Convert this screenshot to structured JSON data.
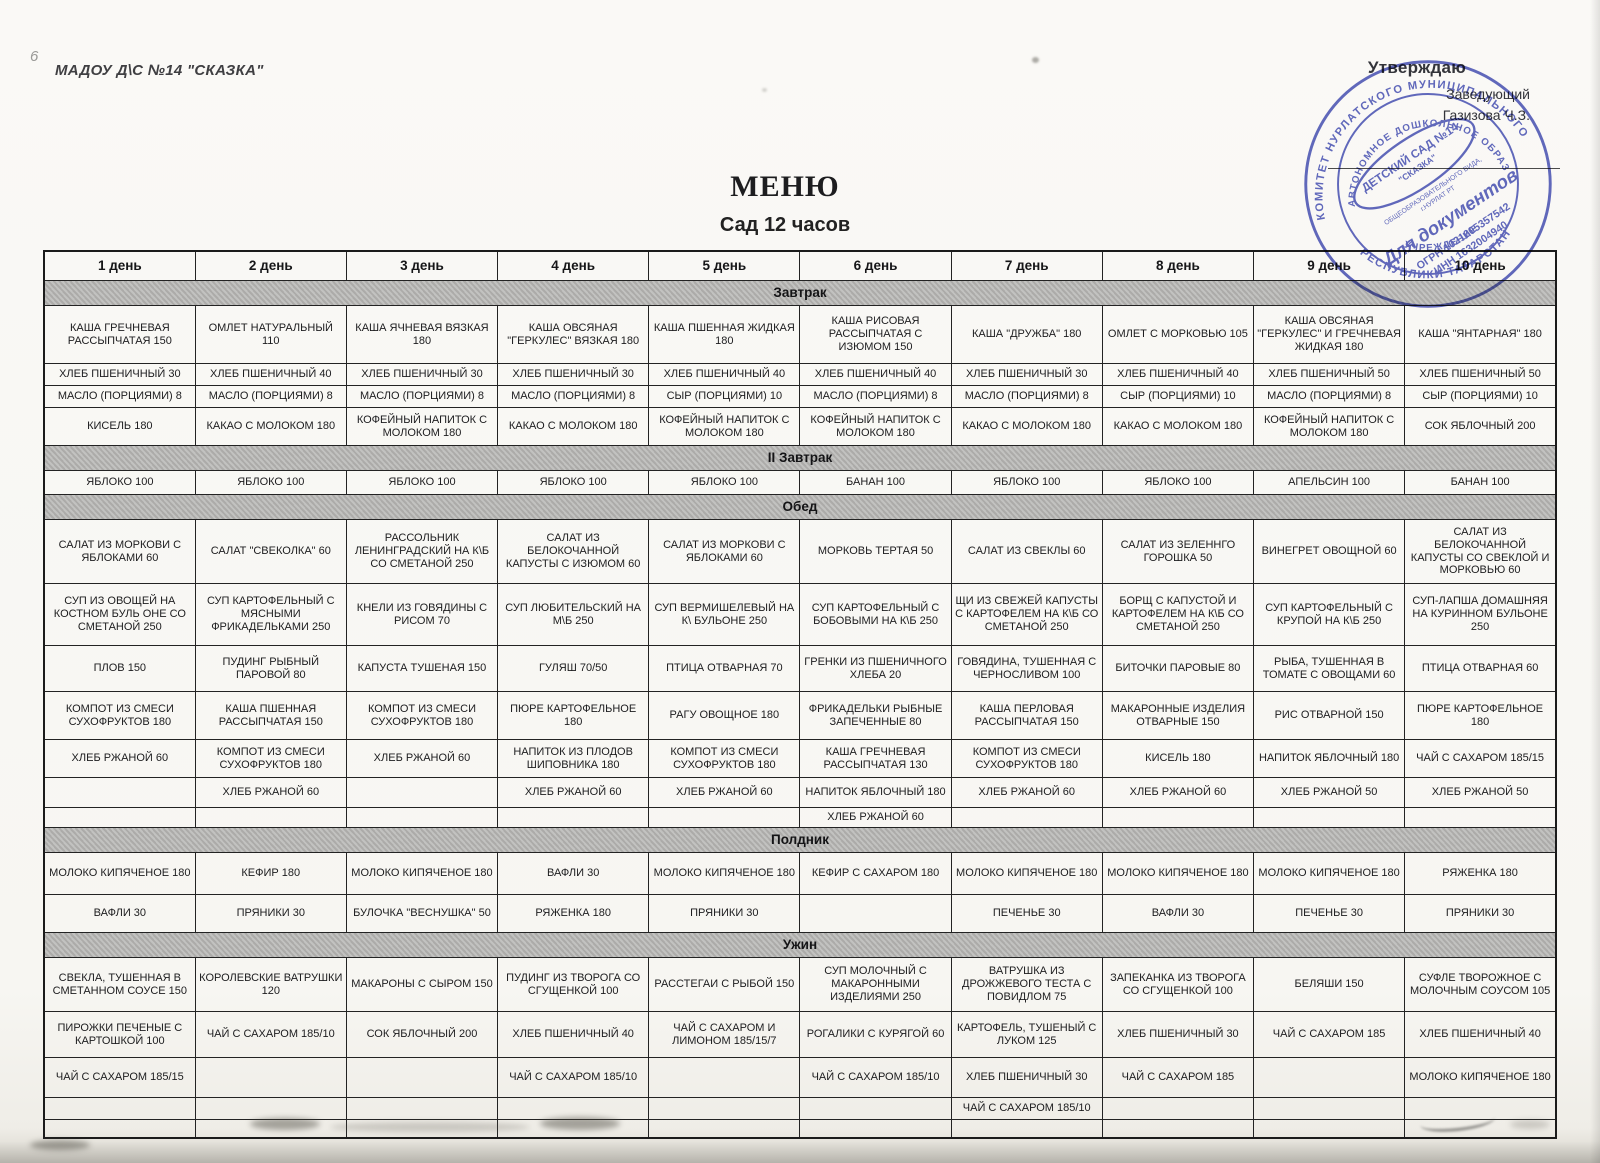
{
  "header": {
    "org_name": "МАДОУ Д\\С №14 \"СКАЗКА\"",
    "approve_title": "Утверждаю",
    "approve_role": "Заведующий",
    "approve_name": "Газизова Ч.З.",
    "title": "МЕНЮ",
    "subtitle": "Сад 12 часов"
  },
  "stamp": {
    "color": "#3f49b5",
    "ring_outer_top": "КОМИТЕТ НУРЛАТСКОГО МУНИЦИПАЛЬНОГО",
    "ring_outer_bottom": "РЕСПУБЛИКИ ТАТАРСТАН",
    "ring_inner_top": "АВТОНОМНОЕ ДОШКОЛЬНОЕ ОБРАЗОВ.",
    "ring_inner_bottom": "УЧРЕЖДЕНИЕ",
    "center_name": "ДЕТСКИЙ САД №14",
    "center_name2": "\"СКАЗКА\"",
    "center_type": "ОБЩЕОБРАЗОВАТЕЛЬНОГО ВИДА,",
    "center_city": "г.НУРЛАТ РТ",
    "purpose": "Для документов",
    "ogrn": "ОГРН 1021605357542",
    "inn": "ИНН 1632004940"
  },
  "table": {
    "day_headers": [
      "1 день",
      "2 день",
      "3 день",
      "4 день",
      "5 день",
      "6 день",
      "7 день",
      "8 день",
      "9 день",
      "10 день"
    ],
    "sections": [
      {
        "name": "Завтрак",
        "rows": [
          [
            "КАША ГРЕЧНЕВАЯ РАССЫПЧАТАЯ 150",
            "ОМЛЕТ НАТУРАЛЬНЫЙ 110",
            "КАША ЯЧНЕВАЯ ВЯЗКАЯ 180",
            "КАША ОВСЯНАЯ \"ГЕРКУЛЕС\" ВЯЗКАЯ 180",
            "КАША ПШЕННАЯ ЖИДКАЯ 180",
            "КАША РИСОВАЯ РАССЫПЧАТАЯ С ИЗЮМОМ 150",
            "КАША \"ДРУЖБА\" 180",
            "ОМЛЕТ С МОРКОВЬЮ 105",
            "КАША ОВСЯНАЯ \"ГЕРКУЛЕС\" И ГРЕЧНЕВАЯ ЖИДКАЯ 180",
            "КАША \"ЯНТАРНАЯ\" 180"
          ],
          [
            "ХЛЕБ ПШЕНИЧНЫЙ 30",
            "ХЛЕБ ПШЕНИЧНЫЙ 40",
            "ХЛЕБ ПШЕНИЧНЫЙ 30",
            "ХЛЕБ ПШЕНИЧНЫЙ 30",
            "ХЛЕБ ПШЕНИЧНЫЙ 40",
            "ХЛЕБ ПШЕНИЧНЫЙ 40",
            "ХЛЕБ ПШЕНИЧНЫЙ 30",
            "ХЛЕБ ПШЕНИЧНЫЙ 40",
            "ХЛЕБ ПШЕНИЧНЫЙ 50",
            "ХЛЕБ ПШЕНИЧНЫЙ 50"
          ],
          [
            "МАСЛО (ПОРЦИЯМИ) 8",
            "МАСЛО (ПОРЦИЯМИ) 8",
            "МАСЛО (ПОРЦИЯМИ) 8",
            "МАСЛО (ПОРЦИЯМИ) 8",
            "СЫР (ПОРЦИЯМИ) 10",
            "МАСЛО (ПОРЦИЯМИ) 8",
            "МАСЛО (ПОРЦИЯМИ) 8",
            "СЫР (ПОРЦИЯМИ) 10",
            "МАСЛО (ПОРЦИЯМИ) 8",
            "СЫР (ПОРЦИЯМИ) 10"
          ],
          [
            "КИСЕЛЬ 180",
            "КАКАО С МОЛОКОМ 180",
            "КОФЕЙНЫЙ НАПИТОК С МОЛОКОМ 180",
            "КАКАО С МОЛОКОМ 180",
            "КОФЕЙНЫЙ НАПИТОК С МОЛОКОМ 180",
            "КОФЕЙНЫЙ НАПИТОК С МОЛОКОМ 180",
            "КАКАО С МОЛОКОМ 180",
            "КАКАО С МОЛОКОМ 180",
            "КОФЕЙНЫЙ НАПИТОК С МОЛОКОМ 180",
            "СОК ЯБЛОЧНЫЙ 200"
          ]
        ]
      },
      {
        "name": "II Завтрак",
        "rows": [
          [
            "ЯБЛОКО 100",
            "ЯБЛОКО 100",
            "ЯБЛОКО 100",
            "ЯБЛОКО 100",
            "ЯБЛОКО 100",
            "БАНАН 100",
            "ЯБЛОКО 100",
            "ЯБЛОКО 100",
            "АПЕЛЬСИН 100",
            "БАНАН 100"
          ]
        ]
      },
      {
        "name": "Обед",
        "rows": [
          [
            "САЛАТ ИЗ МОРКОВИ С ЯБЛОКАМИ 60",
            "САЛАТ \"СВЕКОЛКА\" 60",
            "РАССОЛЬНИК ЛЕНИНГРАДСКИЙ НА К\\Б СО СМЕТАНОЙ 250",
            "САЛАТ ИЗ БЕЛОКОЧАННОЙ КАПУСТЫ С ИЗЮМОМ 60",
            "САЛАТ ИЗ МОРКОВИ С ЯБЛОКАМИ 60",
            "МОРКОВЬ ТЕРТАЯ 50",
            "САЛАТ ИЗ СВЕКЛЫ 60",
            "САЛАТ ИЗ ЗЕЛЕННГО ГОРОШКА 50",
            "ВИНЕГРЕТ ОВОЩНОЙ 60",
            "САЛАТ ИЗ БЕЛОКОЧАННОЙ КАПУСТЫ СО СВЕКЛОЙ И МОРКОВЬЮ 60"
          ],
          [
            "СУП ИЗ ОВОЩЕЙ НА КОСТНОМ БУЛЬ ОНЕ СО СМЕТАНОЙ 250",
            "СУП КАРТОФЕЛЬНЫЙ С МЯСНЫМИ ФРИКАДЕЛЬКАМИ 250",
            "КНЕЛИ ИЗ ГОВЯДИНЫ С РИСОМ 70",
            "СУП ЛЮБИТЕЛЬСКИЙ НА М\\Б 250",
            "СУП ВЕРМИШЕЛЕВЫЙ НА К\\ БУЛЬОНЕ 250",
            "СУП КАРТОФЕЛЬНЫЙ С БОБОВЫМИ НА К\\Б 250",
            "ЩИ ИЗ СВЕЖЕЙ КАПУСТЫ С КАРТОФЕЛЕМ НА К\\Б СО СМЕТАНОЙ 250",
            "БОРЩ С КАПУСТОЙ И КАРТОФЕЛЕМ НА К\\Б СО СМЕТАНОЙ 250",
            "СУП КАРТОФЕЛЬНЫЙ С КРУПОЙ НА К\\Б 250",
            "СУП-ЛАПША ДОМАШНЯЯ НА КУРИННОМ БУЛЬОНЕ 250"
          ],
          [
            "ПЛОВ 150",
            "ПУДИНГ РЫБНЫЙ ПАРОВОЙ 80",
            "КАПУСТА ТУШЕНАЯ 150",
            "ГУЛЯШ 70/50",
            "ПТИЦА ОТВАРНАЯ 70",
            "ГРЕНКИ ИЗ ПШЕНИЧНОГО ХЛЕБА 20",
            "ГОВЯДИНА, ТУШЕННАЯ С ЧЕРНОСЛИВОМ 100",
            "БИТОЧКИ ПАРОВЫЕ 80",
            "РЫБА, ТУШЕННАЯ В ТОМАТЕ С ОВОЩАМИ 60",
            "ПТИЦА ОТВАРНАЯ 60"
          ],
          [
            "КОМПОТ ИЗ СМЕСИ СУХОФРУКТОВ 180",
            "КАША ПШЕННАЯ РАССЫПЧАТАЯ 150",
            "КОМПОТ ИЗ СМЕСИ СУХОФРУКТОВ 180",
            "ПЮРЕ КАРТОФЕЛЬНОЕ 180",
            "РАГУ ОВОЩНОЕ 180",
            "ФРИКАДЕЛЬКИ РЫБНЫЕ ЗАПЕЧЕННЫЕ 80",
            "КАША ПЕРЛОВАЯ РАССЫПЧАТАЯ 150",
            "МАКАРОННЫЕ ИЗДЕЛИЯ ОТВАРНЫЕ 150",
            "РИС ОТВАРНОЙ 150",
            "ПЮРЕ КАРТОФЕЛЬНОЕ 180"
          ],
          [
            "ХЛЕБ РЖАНОЙ 60",
            "КОМПОТ ИЗ СМЕСИ СУХОФРУКТОВ 180",
            "ХЛЕБ РЖАНОЙ 60",
            "НАПИТОК ИЗ ПЛОДОВ ШИПОВНИКА 180",
            "КОМПОТ ИЗ СМЕСИ СУХОФРУКТОВ 180",
            "КАША ГРЕЧНЕВАЯ РАССЫПЧАТАЯ 130",
            "КОМПОТ ИЗ СМЕСИ СУХОФРУКТОВ 180",
            "КИСЕЛЬ 180",
            "НАПИТОК ЯБЛОЧНЫЙ 180",
            "ЧАЙ С САХАРОМ 185/15"
          ],
          [
            "",
            "ХЛЕБ РЖАНОЙ 60",
            "",
            "ХЛЕБ РЖАНОЙ 60",
            "ХЛЕБ РЖАНОЙ 60",
            "НАПИТОК ЯБЛОЧНЫЙ 180",
            "ХЛЕБ РЖАНОЙ 60",
            "ХЛЕБ РЖАНОЙ 60",
            "ХЛЕБ РЖАНОЙ 50",
            "ХЛЕБ РЖАНОЙ 50"
          ],
          [
            "",
            "",
            "",
            "",
            "",
            "ХЛЕБ РЖАНОЙ 60",
            "",
            "",
            "",
            ""
          ]
        ]
      },
      {
        "name": "Полдник",
        "rows": [
          [
            "МОЛОКО КИПЯЧЕНОЕ 180",
            "КЕФИР 180",
            "МОЛОКО КИПЯЧЕНОЕ 180",
            "ВАФЛИ 30",
            "МОЛОКО КИПЯЧЕНОЕ 180",
            "КЕФИР С САХАРОМ 180",
            "МОЛОКО КИПЯЧЕНОЕ 180",
            "МОЛОКО КИПЯЧЕНОЕ 180",
            "МОЛОКО КИПЯЧЕНОЕ 180",
            "РЯЖЕНКА 180"
          ],
          [
            "ВАФЛИ 30",
            "ПРЯНИКИ 30",
            "БУЛОЧКА \"ВЕСНУШКА\" 50",
            "РЯЖЕНКА 180",
            "ПРЯНИКИ 30",
            "",
            "ПЕЧЕНЬЕ 30",
            "ВАФЛИ 30",
            "ПЕЧЕНЬЕ 30",
            "ПРЯНИКИ 30"
          ]
        ]
      },
      {
        "name": "Ужин",
        "rows": [
          [
            "СВЕКЛА, ТУШЕННАЯ В СМЕТАННОМ СОУСЕ 150",
            "КОРОЛЕВСКИЕ ВАТРУШКИ 120",
            "МАКАРОНЫ С СЫРОМ 150",
            "ПУДИНГ ИЗ ТВОРОГА СО СГУЩЕНКОЙ 100",
            "РАССТЕГАИ С РЫБОЙ 150",
            "СУП МОЛОЧНЫЙ С МАКАРОННЫМИ ИЗДЕЛИЯМИ 250",
            "ВАТРУШКА ИЗ ДРОЖЖЕВОГО ТЕСТА С ПОВИДЛОМ 75",
            "ЗАПЕКАНКА ИЗ ТВОРОГА СО СГУЩЕНКОЙ 100",
            "БЕЛЯШИ 150",
            "СУФЛЕ ТВОРОЖНОЕ С МОЛОЧНЫМ СОУСОМ 105"
          ],
          [
            "ПИРОЖКИ ПЕЧЕНЫЕ С КАРТОШКОЙ 100",
            "ЧАЙ С САХАРОМ 185/10",
            "СОК ЯБЛОЧНЫЙ 200",
            "ХЛЕБ ПШЕНИЧНЫЙ 40",
            "ЧАЙ С САХАРОМ И ЛИМОНОМ 185/15/7",
            "РОГАЛИКИ С КУРЯГОЙ 60",
            "КАРТОФЕЛЬ, ТУШЕНЫЙ С ЛУКОМ 125",
            "ХЛЕБ ПШЕНИЧНЫЙ 30",
            "ЧАЙ С САХАРОМ 185",
            "ХЛЕБ ПШЕНИЧНЫЙ 40"
          ],
          [
            "ЧАЙ С САХАРОМ 185/15",
            "",
            "",
            "ЧАЙ С САХАРОМ 185/10",
            "",
            "ЧАЙ С САХАРОМ 185/10",
            "ХЛЕБ ПШЕНИЧНЫЙ 30",
            "ЧАЙ С САХАРОМ 185",
            "",
            "МОЛОКО КИПЯЧЕНОЕ 180"
          ],
          [
            "",
            "",
            "",
            "",
            "",
            "",
            "ЧАЙ С САХАРОМ 185/10",
            "",
            "",
            ""
          ],
          [
            "",
            "",
            "",
            "",
            "",
            "",
            "",
            "",
            "",
            ""
          ]
        ]
      }
    ]
  }
}
